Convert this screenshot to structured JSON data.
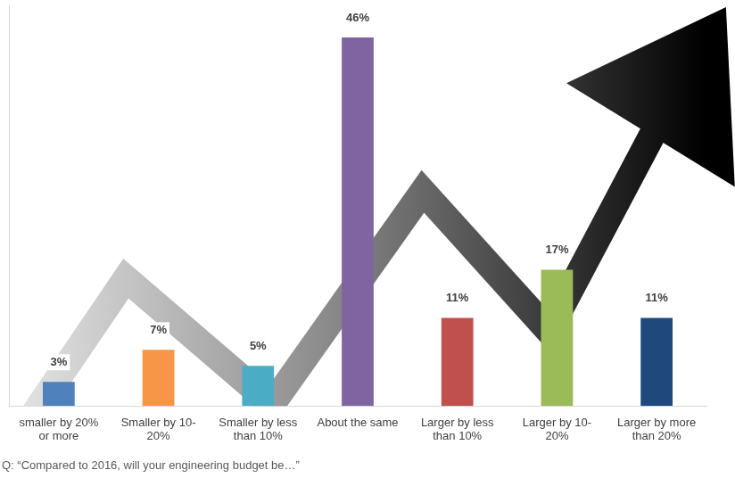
{
  "chart_data": {
    "type": "bar",
    "title": "Q: “Compared to 2016, will your engineering budget be…”",
    "categories": [
      "smaller by 20% or more",
      "Smaller by 10-20%",
      "Smaller by less than 10%",
      "About the same",
      "Larger by less than 10%",
      "Larger by 10-20%",
      "Larger by more than 20%"
    ],
    "values": [
      3,
      7,
      5,
      46,
      11,
      17,
      11
    ],
    "value_labels": [
      "3%",
      "7%",
      "5%",
      "46%",
      "11%",
      "17%",
      "11%"
    ],
    "colors": [
      "#4f81bd",
      "#f79646",
      "#4bacc6",
      "#8064a2",
      "#c0504d",
      "#9bbb59",
      "#1f497d"
    ],
    "ylim": [
      0,
      50
    ],
    "yticks": [],
    "grid": false,
    "data_labels": true,
    "tick_labels": "x"
  }
}
